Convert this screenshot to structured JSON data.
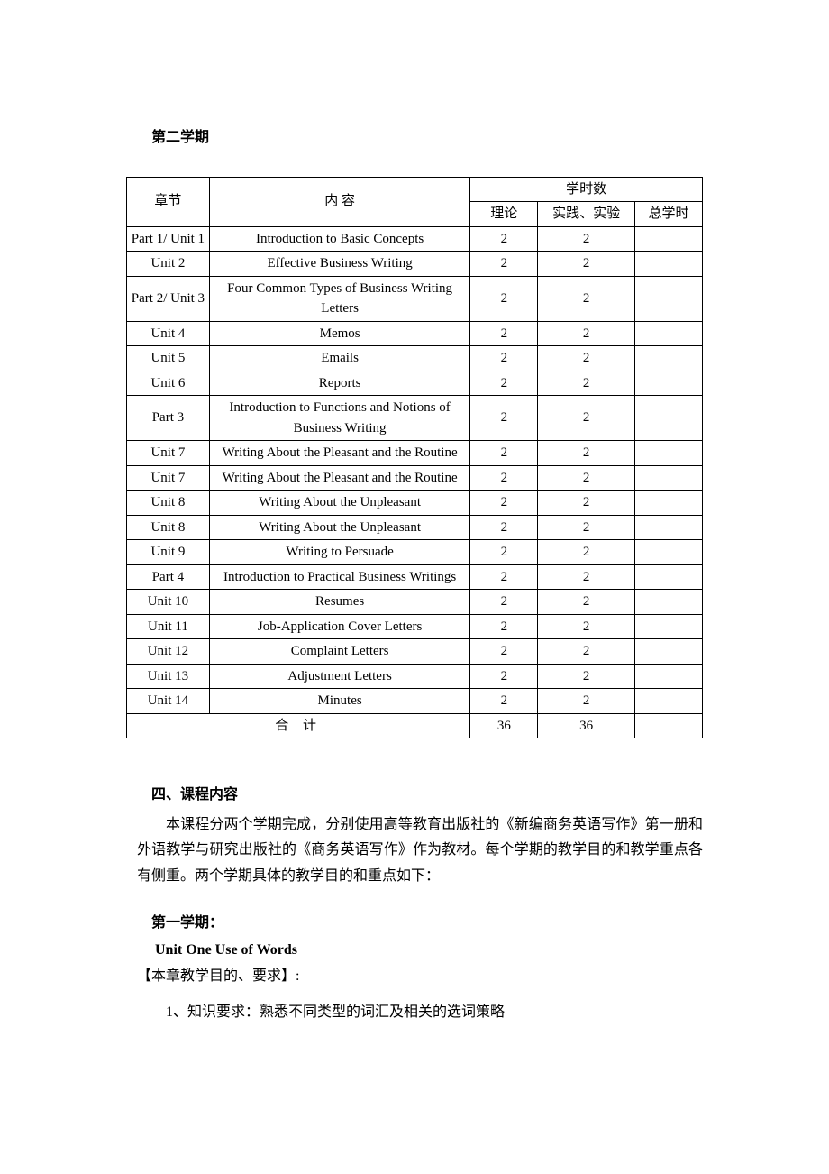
{
  "heading_semester": "第二学期",
  "table": {
    "header": {
      "chapter": "章节",
      "content": "内 容",
      "hours_group": "学时数",
      "theory": "理论",
      "practice": "实践、实验",
      "total": "总学时"
    },
    "rows": [
      {
        "chapter": "Part 1/ Unit 1",
        "content": "Introduction to Basic Concepts",
        "theory": "2",
        "practice": "2",
        "total": ""
      },
      {
        "chapter": "Unit 2",
        "content": "Effective Business Writing",
        "theory": "2",
        "practice": "2",
        "total": ""
      },
      {
        "chapter": "Part 2/ Unit 3",
        "content": "Four Common Types of Business Writing\nLetters",
        "theory": "2",
        "practice": "2",
        "total": ""
      },
      {
        "chapter": "Unit 4",
        "content": "Memos",
        "theory": "2",
        "practice": "2",
        "total": ""
      },
      {
        "chapter": "Unit 5",
        "content": "Emails",
        "theory": "2",
        "practice": "2",
        "total": ""
      },
      {
        "chapter": "Unit 6",
        "content": "Reports",
        "theory": "2",
        "practice": "2",
        "total": ""
      },
      {
        "chapter": "Part 3",
        "content": "Introduction to Functions and Notions of Business Writing",
        "theory": "2",
        "practice": "2",
        "total": ""
      },
      {
        "chapter": "Unit 7",
        "content": "Writing About the Pleasant and the Routine",
        "theory": "2",
        "practice": "2",
        "total": ""
      },
      {
        "chapter": "Unit 7",
        "content": "Writing About the Pleasant and the Routine",
        "theory": "2",
        "practice": "2",
        "total": ""
      },
      {
        "chapter": "Unit 8",
        "content": "Writing About the Unpleasant",
        "theory": "2",
        "practice": "2",
        "total": ""
      },
      {
        "chapter": "Unit 8",
        "content": "Writing About the Unpleasant",
        "theory": "2",
        "practice": "2",
        "total": ""
      },
      {
        "chapter": "Unit 9",
        "content": "Writing to Persuade",
        "theory": "2",
        "practice": "2",
        "total": ""
      },
      {
        "chapter": "Part 4",
        "content": "Introduction to Practical Business Writings",
        "theory": "2",
        "practice": "2",
        "total": ""
      },
      {
        "chapter": "Unit 10",
        "content": "Resumes",
        "theory": "2",
        "practice": "2",
        "total": ""
      },
      {
        "chapter": "Unit 11",
        "content": "Job-Application Cover Letters",
        "theory": "2",
        "practice": "2",
        "total": ""
      },
      {
        "chapter": "Unit 12",
        "content": "Complaint Letters",
        "theory": "2",
        "practice": "2",
        "total": ""
      },
      {
        "chapter": "Unit 13",
        "content": "Adjustment Letters",
        "theory": "2",
        "practice": "2",
        "total": ""
      },
      {
        "chapter": "Unit 14",
        "content": "Minutes",
        "theory": "2",
        "practice": "2",
        "total": ""
      }
    ],
    "total_row": {
      "label": "合  计",
      "theory": "36",
      "practice": "36",
      "total": ""
    }
  },
  "section4": {
    "heading": "四、课程内容",
    "paragraph": "本课程分两个学期完成，分别使用高等教育出版社的《新编商务英语写作》第一册和外语教学与研究出版社的《商务英语写作》作为教材。每个学期的教学目的和教学重点各有侧重。两个学期具体的教学目的和重点如下："
  },
  "sub_section": {
    "semester_label": "第一学期：",
    "unit_title": "Unit One Use of Words",
    "bracket_line": "【本章教学目的、要求】:",
    "numbered_item": "1、知识要求：熟悉不同类型的词汇及相关的选词策略"
  }
}
